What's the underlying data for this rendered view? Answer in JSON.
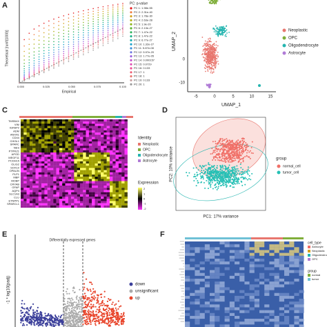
{
  "panels": [
    {
      "label": "A",
      "xlabel": "Empirical",
      "ylabel": "Theoretical [runif(1000)]",
      "xticks": [
        "0.000",
        "0.025",
        "0.050",
        "0.075",
        "0.100"
      ],
      "legend_title": "PC: p-value",
      "legend": [
        "PC 1: 1.98e-55",
        "PC 2: 2.31e-40",
        "PC 3: 1.78e-30",
        "PC 4: 2.63e-28",
        "PC 5: 1.9e-20",
        "PC 6: 2.13e-27",
        "PC 7: 1.47e-22",
        "PC 8: 1.47e-22",
        "PC 9: 6.77e-27",
        "PC 10: 1.32e-27",
        "PC 11: 5.87e-08",
        "PC 12: 5.97e-20",
        "PC 13: 1.77e-05",
        "PC 14: 0.000157",
        "PC 15: 0.0729",
        "PC 16: 0.133",
        "PC 17: 1",
        "PC 18: 1",
        "PC 19: 0.133",
        "PC 20: 1"
      ]
    },
    {
      "label": "B",
      "xlabel": "UMAP_1",
      "ylabel": "UMAP_2",
      "xticks": [
        "-5",
        "0",
        "5",
        "10",
        "15"
      ],
      "yticks": [
        "0",
        "-10"
      ],
      "legend": [
        "Neoplastic",
        "OPC",
        "Oligodendrocyte",
        "Astrocyte"
      ]
    },
    {
      "label": "C",
      "genes": [
        "TMSB4X",
        "VIM",
        "IGFBP2",
        "ADM",
        "ANXA1",
        "CD44",
        "CHI3L1",
        "SPARC",
        "NES",
        "PTPRZ1",
        "APOD",
        "MEGF11",
        "PCDH15",
        "OLIG2",
        "SOX10",
        "OPALIN",
        "PLP1",
        "MBP",
        "MOBP",
        "CRYAB",
        "GFAP",
        "AQP4",
        "SLC1A3",
        "CLU",
        "ETNPPL",
        "SPARCL1"
      ],
      "identity_title": "Identity",
      "identity": [
        "Neoplastic",
        "OPC",
        "Oligodendrocyte",
        "Astrocyte"
      ],
      "expression_title": "Expression",
      "expression_ticks": [
        "2",
        "1",
        "0",
        "-1",
        "-2"
      ]
    },
    {
      "label": "D",
      "xlabel": "PC1: 17% variance",
      "ylabel": "PC2: 10% variance",
      "legend_title": "group",
      "legend": [
        "normal_cell",
        "tumor_cell"
      ]
    },
    {
      "label": "E",
      "title": "Differentially expressed genes",
      "ylabel": "-1 * log10(padj)",
      "legend": [
        "down",
        "unsignificant",
        "up"
      ]
    },
    {
      "label": "F",
      "legend1_title": "cell_type",
      "legend1": [
        "Astrocyte",
        "Neoplastic",
        "Oligodendrocyte",
        "OPC"
      ],
      "legend2_title": "group",
      "legend2": [
        "normal",
        "tumor"
      ]
    }
  ]
}
